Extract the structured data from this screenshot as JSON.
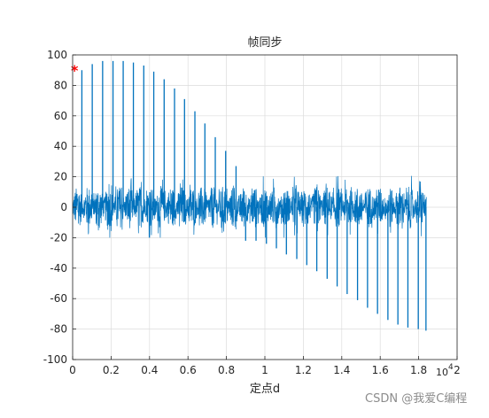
{
  "chart_data": {
    "type": "line",
    "title": "帧同步",
    "xlabel": "定点d",
    "ylabel": "",
    "x_multiplier_label": "10",
    "x_multiplier_exponent": "4",
    "xlim": [
      0,
      20000
    ],
    "ylim": [
      -100,
      100
    ],
    "xticks": [
      0,
      2000,
      4000,
      6000,
      8000,
      10000,
      12000,
      14000,
      16000,
      18000,
      20000
    ],
    "xtick_labels": [
      "0",
      "0.2",
      "0.4",
      "0.6",
      "0.8",
      "1",
      "1.2",
      "1.4",
      "1.6",
      "1.8",
      "2"
    ],
    "yticks": [
      -100,
      -80,
      -60,
      -40,
      -20,
      0,
      20,
      40,
      60,
      80,
      100
    ],
    "ytick_labels": [
      "-100",
      "-80",
      "-60",
      "-40",
      "-20",
      "0",
      "20",
      "40",
      "60",
      "80",
      "100"
    ],
    "grid": true,
    "series": [
      {
        "color": "#0072bd",
        "x_range": [
          0,
          18400
        ],
        "noise_band": [
          -20,
          22
        ],
        "sync_peaks": [
          {
            "x": 480,
            "y": 90
          },
          {
            "x": 1020,
            "y": 94
          },
          {
            "x": 1560,
            "y": 96
          },
          {
            "x": 2100,
            "y": 96
          },
          {
            "x": 2630,
            "y": 96
          },
          {
            "x": 3160,
            "y": 95
          },
          {
            "x": 3700,
            "y": 93
          },
          {
            "x": 4220,
            "y": 89
          },
          {
            "x": 4760,
            "y": 84
          },
          {
            "x": 5300,
            "y": 78
          },
          {
            "x": 5820,
            "y": 71
          },
          {
            "x": 6360,
            "y": 63
          },
          {
            "x": 6880,
            "y": 55
          },
          {
            "x": 7420,
            "y": 46
          },
          {
            "x": 7960,
            "y": 37
          },
          {
            "x": 8500,
            "y": 27
          },
          {
            "x": 9000,
            "y": -22
          },
          {
            "x": 9540,
            "y": -22
          },
          {
            "x": 10080,
            "y": -24
          },
          {
            "x": 10600,
            "y": -27
          },
          {
            "x": 11120,
            "y": -31
          },
          {
            "x": 11660,
            "y": -34
          },
          {
            "x": 12180,
            "y": -38
          },
          {
            "x": 12700,
            "y": -42
          },
          {
            "x": 13240,
            "y": -47
          },
          {
            "x": 13760,
            "y": -52
          },
          {
            "x": 14280,
            "y": -57
          },
          {
            "x": 14820,
            "y": -61
          },
          {
            "x": 15340,
            "y": -66
          },
          {
            "x": 15860,
            "y": -70
          },
          {
            "x": 16400,
            "y": -74
          },
          {
            "x": 16920,
            "y": -77
          },
          {
            "x": 17440,
            "y": -79
          },
          {
            "x": 17980,
            "y": -80
          },
          {
            "x": 18380,
            "y": -81
          }
        ]
      }
    ],
    "marker": {
      "x": 100,
      "y": 90,
      "symbol": "*",
      "color": "#ff0000"
    }
  },
  "watermark": "CSDN @我爱C编程"
}
